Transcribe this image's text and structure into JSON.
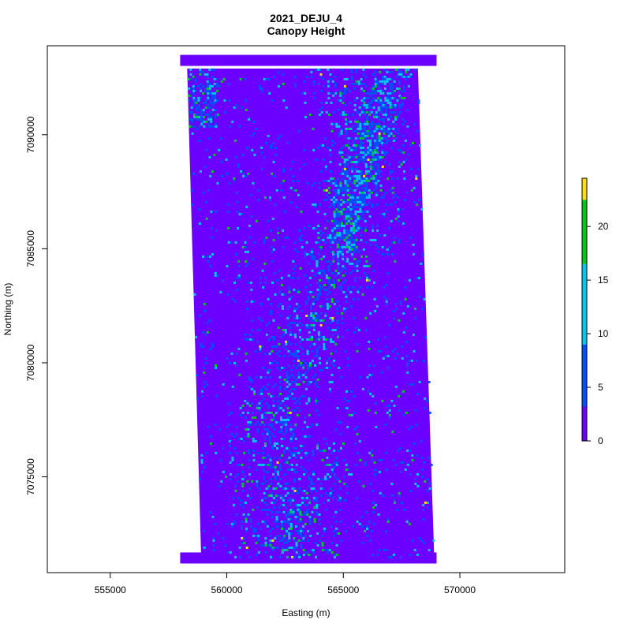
{
  "chart_data": {
    "type": "heatmap",
    "title": "2021_DEJU_4",
    "subtitle": "Canopy Height",
    "xlabel": "Easting (m)",
    "ylabel": "Northing (m)",
    "xlim": [
      552300,
      574500
    ],
    "ylim": [
      7070800,
      7093900
    ],
    "x_ticks": [
      555000,
      560000,
      565000,
      570000
    ],
    "x_tick_labels": [
      "555000",
      "560000",
      "565000",
      "570000"
    ],
    "y_ticks": [
      7075000,
      7080000,
      7085000,
      7090000
    ],
    "y_tick_labels": [
      "7075000",
      "7080000",
      "7085000",
      "7090000"
    ],
    "data_extent": {
      "x": [
        558000,
        569000
      ],
      "y": [
        7071200,
        7093500
      ]
    },
    "raster_footprint": {
      "west": [
        558300,
        558900
      ],
      "east": [
        568200,
        568900
      ],
      "south": 7071500,
      "north": 7092900
    },
    "colorbar": {
      "ticks": [
        0,
        5,
        10,
        15,
        20
      ],
      "tick_labels": [
        "0",
        "5",
        "10",
        "15",
        "20"
      ],
      "range": [
        0,
        24.5
      ],
      "bins": [
        {
          "from": 0,
          "to": 3.2,
          "color": "#6B00FF"
        },
        {
          "from": 3.2,
          "to": 9,
          "color": "#0050FF"
        },
        {
          "from": 9,
          "to": 16.5,
          "color": "#00C8F0"
        },
        {
          "from": 16.5,
          "to": 22.5,
          "color": "#00C820"
        },
        {
          "from": 22.5,
          "to": 24.5,
          "color": "#FFE000"
        }
      ]
    },
    "grid": false,
    "legend_position": "right"
  }
}
